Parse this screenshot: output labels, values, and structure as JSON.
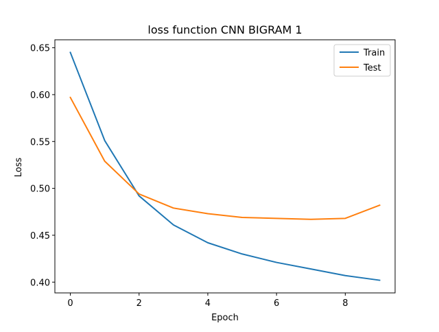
{
  "chart_data": {
    "type": "line",
    "title": "loss function CNN BIGRAM 1",
    "xlabel": "Epoch",
    "ylabel": "Loss",
    "x": [
      0,
      1,
      2,
      3,
      4,
      5,
      6,
      7,
      8,
      9
    ],
    "xlim": [
      -0.45,
      9.45
    ],
    "ylim": [
      0.3885,
      0.6585
    ],
    "xticks": [
      0,
      2,
      4,
      6,
      8
    ],
    "yticks": [
      0.4,
      0.45,
      0.5,
      0.55,
      0.6,
      0.65
    ],
    "xtick_labels": [
      "0",
      "2",
      "4",
      "6",
      "8"
    ],
    "ytick_labels": [
      "0.40",
      "0.45",
      "0.50",
      "0.55",
      "0.60",
      "0.65"
    ],
    "grid": false,
    "legend_position": "top-right",
    "series": [
      {
        "name": "Train",
        "color": "#1f77b4",
        "values": [
          0.645,
          0.551,
          0.492,
          0.461,
          0.442,
          0.43,
          0.421,
          0.414,
          0.407,
          0.402
        ]
      },
      {
        "name": "Test",
        "color": "#ff7f0e",
        "values": [
          0.597,
          0.529,
          0.494,
          0.479,
          0.473,
          0.469,
          0.468,
          0.467,
          0.468,
          0.482
        ]
      }
    ]
  }
}
